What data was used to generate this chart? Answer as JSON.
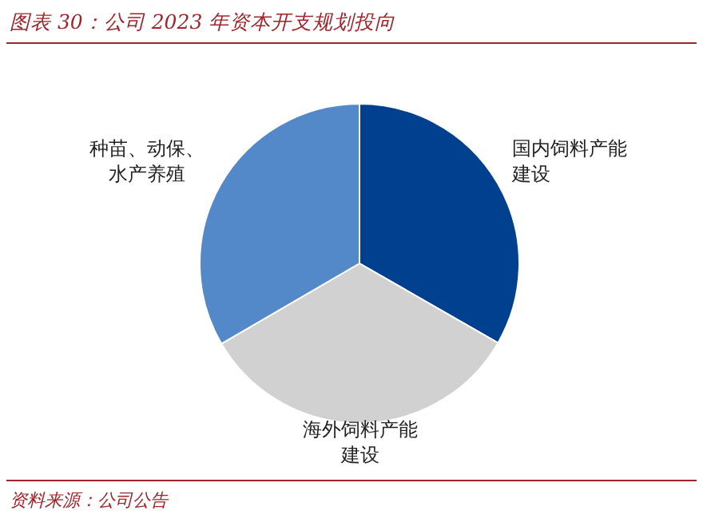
{
  "chart_data": {
    "type": "pie",
    "title": "图表 30：公司 2023 年资本开支规划投向",
    "categories": [
      "国内饲料产能建设",
      "海外饲料产能建设",
      "种苗、动保、水产养殖"
    ],
    "values": [
      33.3,
      33.3,
      33.4
    ],
    "colors": [
      "#00408f",
      "#d1d1d1",
      "#5389c9"
    ],
    "annotations": [
      "资料来源：公司公告"
    ]
  }
}
